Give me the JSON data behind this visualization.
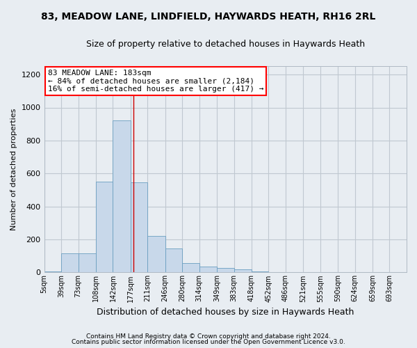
{
  "title1": "83, MEADOW LANE, LINDFIELD, HAYWARDS HEATH, RH16 2RL",
  "title2": "Size of property relative to detached houses in Haywards Heath",
  "xlabel": "Distribution of detached houses by size in Haywards Heath",
  "ylabel": "Number of detached properties",
  "footnote1": "Contains HM Land Registry data © Crown copyright and database right 2024.",
  "footnote2": "Contains public sector information licensed under the Open Government Licence v3.0.",
  "annotation_line1": "83 MEADOW LANE: 183sqm",
  "annotation_line2": "← 84% of detached houses are smaller (2,184)",
  "annotation_line3": "16% of semi-detached houses are larger (417) →",
  "bar_color": "#c8d8ea",
  "bar_edge_color": "#6a9ec0",
  "vline_color": "#cc0000",
  "vline_x": 183,
  "bin_edges": [
    5,
    39,
    73,
    108,
    142,
    177,
    211,
    246,
    280,
    314,
    349,
    383,
    418,
    452,
    486,
    521,
    555,
    590,
    624,
    659,
    693,
    727
  ],
  "bin_labels": [
    "5sqm",
    "39sqm",
    "73sqm",
    "108sqm",
    "142sqm",
    "177sqm",
    "211sqm",
    "246sqm",
    "280sqm",
    "314sqm",
    "349sqm",
    "383sqm",
    "418sqm",
    "452sqm",
    "486sqm",
    "521sqm",
    "555sqm",
    "590sqm",
    "624sqm",
    "659sqm",
    "693sqm"
  ],
  "bar_heights": [
    5,
    115,
    115,
    550,
    920,
    545,
    220,
    145,
    55,
    35,
    25,
    20,
    5,
    0,
    0,
    0,
    0,
    0,
    0,
    0,
    0
  ],
  "ylim": [
    0,
    1250
  ],
  "yticks": [
    0,
    200,
    400,
    600,
    800,
    1000,
    1200
  ],
  "figure_bg": "#e8edf2",
  "plot_bg": "#e8edf2",
  "grid_color": "#c0c8d0",
  "title1_fontsize": 10,
  "title2_fontsize": 9,
  "xlabel_fontsize": 9,
  "ylabel_fontsize": 8,
  "xtick_fontsize": 7,
  "ytick_fontsize": 8,
  "annot_fontsize": 8,
  "footnote_fontsize": 6.5
}
